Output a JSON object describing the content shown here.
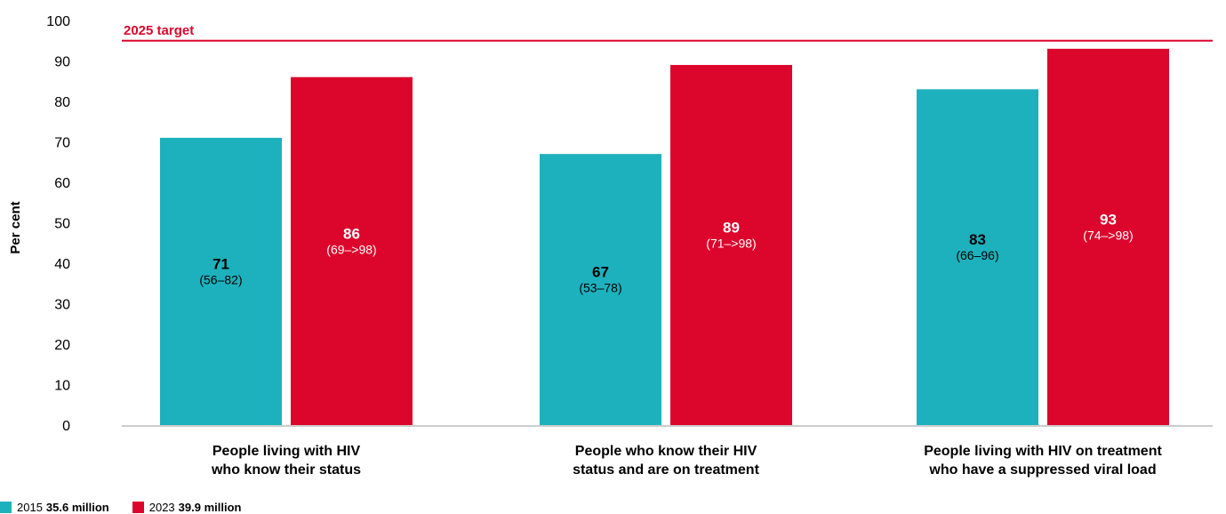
{
  "chart_data": {
    "type": "bar",
    "ylabel": "Per cent",
    "ylim": [
      0,
      100
    ],
    "yticks": [
      0,
      10,
      20,
      30,
      40,
      50,
      60,
      70,
      80,
      90,
      100
    ],
    "grid": false,
    "categories": [
      [
        "People living with HIV",
        "who know their status"
      ],
      [
        "People who know their HIV",
        "status and are on treatment"
      ],
      [
        "People living with HIV on treatment",
        "who have a suppressed viral load"
      ]
    ],
    "series": [
      {
        "name": "2015",
        "total": "35.6 million",
        "color": "#1db1bd",
        "values": [
          71,
          67,
          83
        ],
        "ranges": [
          "(56–82)",
          "(53–78)",
          "(66–96)"
        ]
      },
      {
        "name": "2023",
        "total": "39.9 million",
        "color": "#dc052b",
        "values": [
          86,
          89,
          93
        ],
        "ranges": [
          "(69–>98)",
          "(71–>98)",
          "(74–>98)"
        ]
      }
    ],
    "target": {
      "label": "2025 target",
      "value": 95,
      "color": "#dc052b"
    },
    "legend_position": "bottom-left"
  }
}
